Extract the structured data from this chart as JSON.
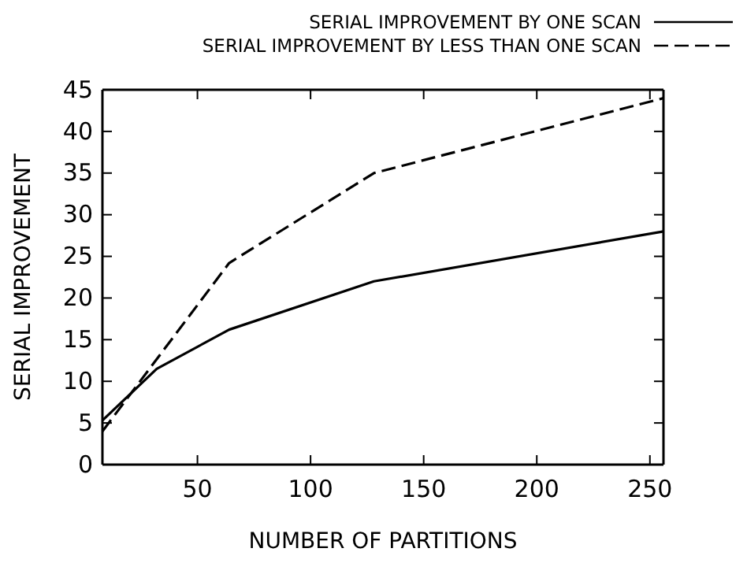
{
  "chart_data": {
    "type": "line",
    "xlabel": "NUMBER OF PARTITIONS",
    "ylabel": "SERIAL IMPROVEMENT",
    "x": [
      8,
      32,
      64,
      128,
      256
    ],
    "series": [
      {
        "name": "SERIAL IMPROVEMENT BY ONE SCAN",
        "color": "#000000",
        "line_style": "solid",
        "values": [
          5.3,
          11.5,
          16.2,
          22,
          28
        ]
      },
      {
        "name": "SERIAL IMPROVEMENT BY LESS THAN ONE SCAN",
        "color": "#000000",
        "line_style": "dashed",
        "x": [
          8,
          64,
          128,
          256
        ],
        "values": [
          4,
          24.2,
          35,
          44
        ]
      }
    ],
    "xlim": [
      8,
      256
    ],
    "xticks": [
      50,
      100,
      150,
      200,
      250
    ],
    "ylim": [
      0,
      45
    ],
    "yticks": [
      0,
      5,
      10,
      15,
      20,
      25,
      30,
      35,
      40,
      45
    ],
    "legend": "top right",
    "grid": false,
    "marker": "none"
  }
}
